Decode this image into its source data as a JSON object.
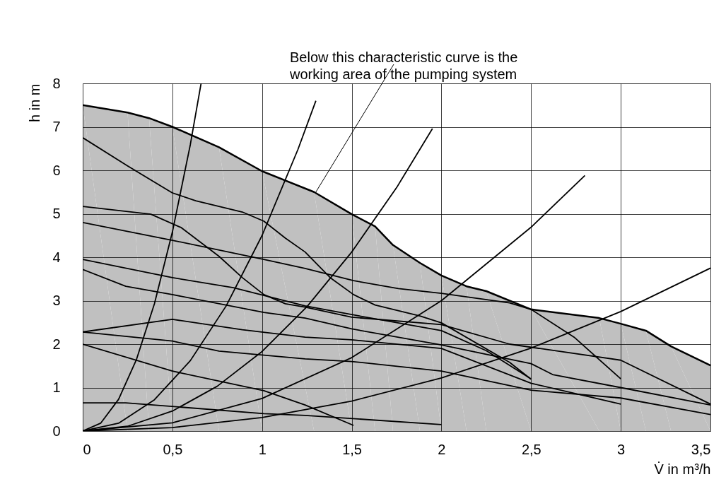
{
  "chart_data": {
    "type": "line",
    "xlabel": "V̇  in m³/h",
    "ylabel": "h in m",
    "annotations": [
      {
        "text": "Below this characteristic curve is the working area of the pumping system",
        "x": 1.3,
        "y": 5.5
      }
    ],
    "xlim": [
      0,
      3.5
    ],
    "ylim": [
      0,
      8
    ],
    "xticks": [
      0,
      {
        "value": 0.5,
        "label": "0,5"
      },
      1,
      {
        "value": 1.5,
        "label": "1,5"
      },
      2,
      {
        "value": 2.5,
        "label": "2,5"
      },
      3,
      {
        "value": 3.5,
        "label": "3,5"
      }
    ],
    "yticks": [
      0,
      1,
      2,
      3,
      4,
      5,
      6,
      7,
      8
    ],
    "grid": true,
    "series": [
      {
        "type": "area",
        "color": "#c0c0c0",
        "x": [
          0,
          0.25,
          0.37,
          0.5,
          0.76,
          1.0,
          1.29,
          1.5,
          1.63,
          1.73,
          1.88,
          2.0,
          2.14,
          2.25,
          2.5,
          2.88,
          3.0,
          3.14,
          3.28,
          3.5
        ],
        "values": [
          7.5,
          7.33,
          7.2,
          7.0,
          6.53,
          5.98,
          5.5,
          4.99,
          4.71,
          4.28,
          3.87,
          3.58,
          3.33,
          3.22,
          2.8,
          2.6,
          2.47,
          2.31,
          1.95,
          1.51
        ]
      },
      {
        "color": "#000000",
        "x": [
          0,
          0.25,
          0.5,
          0.63,
          0.89,
          1.01,
          1.13,
          1.24,
          1.38,
          1.51,
          1.63,
          1.88,
          2.0,
          2.38,
          2.5
        ],
        "values": [
          6.75,
          6.1,
          5.48,
          5.3,
          5.04,
          4.83,
          4.44,
          4.12,
          3.53,
          3.14,
          2.9,
          2.65,
          2.49,
          1.58,
          1.19
        ]
      },
      {
        "color": "#000000",
        "x": [
          0,
          0.38,
          0.55,
          0.76,
          0.89,
          1.01,
          1.13,
          1.24,
          1.5,
          2.0,
          2.38,
          3.0,
          3.5
        ],
        "values": [
          5.17,
          4.99,
          4.68,
          4.02,
          3.53,
          3.14,
          2.93,
          2.85,
          2.62,
          2.45,
          2.0,
          1.63,
          0.62
        ]
      },
      {
        "color": "#000000",
        "x": [
          0,
          0.5,
          1.01,
          1.24,
          1.51,
          1.76,
          2.0,
          2.38,
          2.5,
          2.74,
          3.0
        ],
        "values": [
          4.8,
          4.39,
          3.95,
          3.74,
          3.46,
          3.28,
          3.17,
          2.95,
          2.8,
          2.16,
          1.2
        ]
      },
      {
        "color": "#000000",
        "x": [
          0,
          0.5,
          0.84,
          1.24,
          1.5,
          2.0,
          2.25,
          2.5
        ],
        "values": [
          3.95,
          3.53,
          3.3,
          2.88,
          2.68,
          2.31,
          1.85,
          1.2
        ]
      },
      {
        "color": "#000000",
        "x": [
          0,
          0.24,
          0.5,
          1.01,
          1.24,
          1.5,
          2.0,
          2.5,
          2.62,
          3.0,
          3.5
        ],
        "values": [
          3.72,
          3.33,
          3.14,
          2.73,
          2.6,
          2.35,
          1.98,
          1.55,
          1.3,
          1.0,
          0.6
        ]
      },
      {
        "color": "#000000",
        "x": [
          0,
          0.5,
          0.89,
          1.24,
          1.5,
          2.0,
          2.5,
          3.0
        ],
        "values": [
          2.28,
          2.57,
          2.33,
          2.16,
          2.1,
          1.9,
          1.1,
          0.62
        ]
      },
      {
        "color": "#000000",
        "x": [
          0,
          0.5,
          0.76,
          1.24,
          1.5,
          2.0,
          2.5,
          3.0,
          3.5
        ],
        "values": [
          2.28,
          2.07,
          1.84,
          1.66,
          1.6,
          1.38,
          0.94,
          0.76,
          0.38
        ]
      },
      {
        "color": "#000000",
        "x": [
          0,
          0.5,
          1.01,
          1.24,
          1.51
        ],
        "values": [
          2.0,
          1.38,
          0.93,
          0.6,
          0.13
        ]
      },
      {
        "color": "#000000",
        "x": [
          0,
          0.24,
          1.01,
          1.24,
          2.0
        ],
        "values": [
          0.65,
          0.65,
          0.4,
          0.36,
          0.15
        ]
      },
      {
        "color": "#000000",
        "x": [
          0,
          0.1,
          0.2,
          0.3,
          0.4,
          0.5,
          0.6,
          0.66
        ],
        "values": [
          0,
          0.18,
          0.73,
          1.65,
          2.93,
          4.58,
          6.59,
          8.0
        ]
      },
      {
        "color": "#000000",
        "x": [
          0,
          0.2,
          0.4,
          0.6,
          0.8,
          1.0,
          1.2,
          1.3
        ],
        "values": [
          0,
          0.18,
          0.72,
          1.62,
          2.88,
          4.5,
          6.48,
          7.6
        ]
      },
      {
        "color": "#000000",
        "x": [
          0,
          0.25,
          0.5,
          0.75,
          1.0,
          1.25,
          1.5,
          1.75,
          1.95
        ],
        "values": [
          0,
          0.11,
          0.46,
          1.03,
          1.83,
          2.86,
          4.12,
          5.6,
          6.96
        ]
      },
      {
        "color": "#000000",
        "x": [
          0,
          0.5,
          1.0,
          1.5,
          2.0,
          2.5,
          2.8
        ],
        "values": [
          0,
          0.19,
          0.75,
          1.69,
          3.0,
          4.69,
          5.88
        ]
      },
      {
        "color": "#000000",
        "x": [
          0,
          0.5,
          1.0,
          1.5,
          2.0,
          2.5,
          3.0,
          3.5
        ],
        "values": [
          0,
          0.08,
          0.31,
          0.69,
          1.22,
          1.91,
          2.75,
          3.75
        ]
      }
    ]
  }
}
